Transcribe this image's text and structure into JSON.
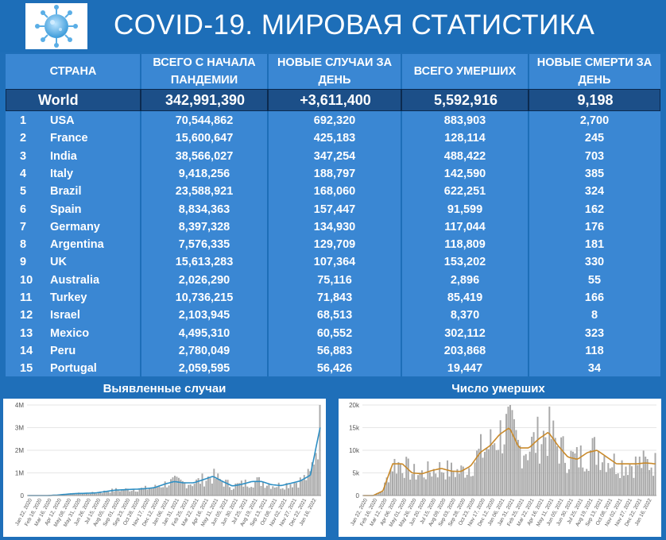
{
  "header": {
    "title": "COVID-19. МИРОВАЯ СТАТИСТИКА",
    "logo_icon": "virus-icon"
  },
  "table": {
    "columns": {
      "country": "СТРАНА",
      "total_cases": "ВСЕГО С НАЧАЛА ПАНДЕМИИ",
      "new_cases": "НОВЫЕ СЛУЧАИ ЗА ДЕНЬ",
      "total_deaths": "ВСЕГО УМЕРШИХ",
      "new_deaths": "НОВЫЕ СМЕРТИ ЗА ДЕНЬ"
    },
    "world": {
      "name": "World",
      "total_cases": "342,991,390",
      "new_cases": "+3,611,400",
      "total_deaths": "5,592,916",
      "new_deaths": "9,198"
    },
    "rows": [
      {
        "rank": "1",
        "name": "USA",
        "total_cases": "70,544,862",
        "new_cases": "692,320",
        "total_deaths": "883,903",
        "new_deaths": "2,700"
      },
      {
        "rank": "2",
        "name": "France",
        "total_cases": "15,600,647",
        "new_cases": "425,183",
        "total_deaths": "128,114",
        "new_deaths": "245"
      },
      {
        "rank": "3",
        "name": "India",
        "total_cases": "38,566,027",
        "new_cases": "347,254",
        "total_deaths": "488,422",
        "new_deaths": "703"
      },
      {
        "rank": "4",
        "name": "Italy",
        "total_cases": "9,418,256",
        "new_cases": "188,797",
        "total_deaths": "142,590",
        "new_deaths": "385"
      },
      {
        "rank": "5",
        "name": "Brazil",
        "total_cases": "23,588,921",
        "new_cases": "168,060",
        "total_deaths": "622,251",
        "new_deaths": "324"
      },
      {
        "rank": "6",
        "name": "Spain",
        "total_cases": "8,834,363",
        "new_cases": "157,447",
        "total_deaths": "91,599",
        "new_deaths": "162"
      },
      {
        "rank": "7",
        "name": "Germany",
        "total_cases": "8,397,328",
        "new_cases": "134,930",
        "total_deaths": "117,044",
        "new_deaths": "176"
      },
      {
        "rank": "8",
        "name": "Argentina",
        "total_cases": "7,576,335",
        "new_cases": "129,709",
        "total_deaths": "118,809",
        "new_deaths": "181"
      },
      {
        "rank": "9",
        "name": "UK",
        "total_cases": "15,613,283",
        "new_cases": "107,364",
        "total_deaths": "153,202",
        "new_deaths": "330"
      },
      {
        "rank": "10",
        "name": "Australia",
        "total_cases": "2,026,290",
        "new_cases": "75,116",
        "total_deaths": "2,896",
        "new_deaths": "55"
      },
      {
        "rank": "11",
        "name": "Turkey",
        "total_cases": "10,736,215",
        "new_cases": "71,843",
        "total_deaths": "85,419",
        "new_deaths": "166"
      },
      {
        "rank": "12",
        "name": "Israel",
        "total_cases": "2,103,945",
        "new_cases": "68,513",
        "total_deaths": "8,370",
        "new_deaths": "8"
      },
      {
        "rank": "13",
        "name": "Mexico",
        "total_cases": "4,495,310",
        "new_cases": "60,552",
        "total_deaths": "302,112",
        "new_deaths": "323"
      },
      {
        "rank": "14",
        "name": "Peru",
        "total_cases": "2,780,049",
        "new_cases": "56,883",
        "total_deaths": "203,868",
        "new_deaths": "118"
      },
      {
        "rank": "15",
        "name": "Portugal",
        "total_cases": "2,059,595",
        "new_cases": "56,426",
        "total_deaths": "19,447",
        "new_deaths": "34"
      }
    ]
  },
  "chart_data": [
    {
      "type": "bar",
      "title": "Выявленные случаи",
      "ylim": [
        0,
        4000000
      ],
      "y_ticks": [
        0,
        1000000,
        2000000,
        3000000,
        4000000
      ],
      "y_tick_labels": [
        "0",
        "1M",
        "2M",
        "3M",
        "4M"
      ],
      "x_tick_labels": [
        "Jan 22, 2020",
        "Feb 18, 2020",
        "Mar 16, 2020",
        "Apr 12, 2020",
        "May 08, 2020",
        "May 31, 2020",
        "Jun 26, 2020",
        "Jul 15, 2020",
        "Aug 05, 2020",
        "Sep 01, 2020",
        "Sep 23, 2020",
        "Oct 28, 2020",
        "Nov 17, 2020",
        "Dec 12, 2020",
        "Jan 06, 2021",
        "Jan 31, 2021",
        "Feb 25, 2021",
        "Mar 22, 2021",
        "Apr 16, 2021",
        "May 11, 2021",
        "Jun 05, 2021",
        "Jun 30, 2021",
        "Jul 25, 2021",
        "Aug 19, 2021",
        "Sep 13, 2021",
        "Oct 08, 2021",
        "Nov 02, 2021",
        "Nov 27, 2021",
        "Dec 22, 2021",
        "Jan 16, 2022"
      ],
      "grid": true,
      "bar_color": "#a9a9a9",
      "line_color": "#2e8fc4",
      "series": [
        {
          "values": [
            0,
            0,
            0,
            20000,
            60000,
            90000,
            100000,
            120000,
            180000,
            240000,
            260000,
            280000,
            300000,
            350000,
            500000,
            620000,
            560000,
            560000,
            700000,
            850000,
            620000,
            420000,
            500000,
            620000,
            620000,
            480000,
            440000,
            540000,
            650000,
            900000,
            3000000
          ]
        }
      ]
    },
    {
      "type": "bar",
      "title": "Число умерших",
      "ylim": [
        0,
        20000
      ],
      "y_ticks": [
        0,
        5000,
        10000,
        15000,
        20000
      ],
      "y_tick_labels": [
        "0",
        "5k",
        "10k",
        "15k",
        "20k"
      ],
      "x_tick_labels": [
        "Jan 22, 2020",
        "Feb 16, 2020",
        "Mar 12, 2020",
        "Apr 06, 2020",
        "May 01, 2020",
        "May 26, 2020",
        "Jun 20, 2020",
        "Jul 15, 2020",
        "Aug 09, 2020",
        "Sep 03, 2020",
        "Sep 28, 2020",
        "Oct 23, 2020",
        "Nov 17, 2020",
        "Dec 12, 2020",
        "Jan 06, 2021",
        "Jan 31, 2021",
        "Feb 25, 2021",
        "Mar 22, 2021",
        "Apr 16, 2021",
        "May 11, 2021",
        "Jun 05, 2021",
        "Jun 30, 2021",
        "Jul 25, 2021",
        "Aug 19, 2021",
        "Sep 13, 2021",
        "Oct 08, 2021",
        "Nov 02, 2021",
        "Nov 27, 2021",
        "Dec 22, 2021",
        "Jan 16, 2022"
      ],
      "grid": true,
      "bar_color": "#a9a9a9",
      "line_color": "#c98a2b",
      "series": [
        {
          "values": [
            0,
            0,
            1000,
            7000,
            7000,
            5000,
            4800,
            5500,
            6000,
            5400,
            5300,
            6500,
            9500,
            11000,
            13500,
            15000,
            10500,
            10500,
            12500,
            14000,
            11000,
            8500,
            8000,
            9500,
            10000,
            8500,
            7000,
            7000,
            7000,
            7200,
            7000
          ]
        }
      ]
    }
  ]
}
